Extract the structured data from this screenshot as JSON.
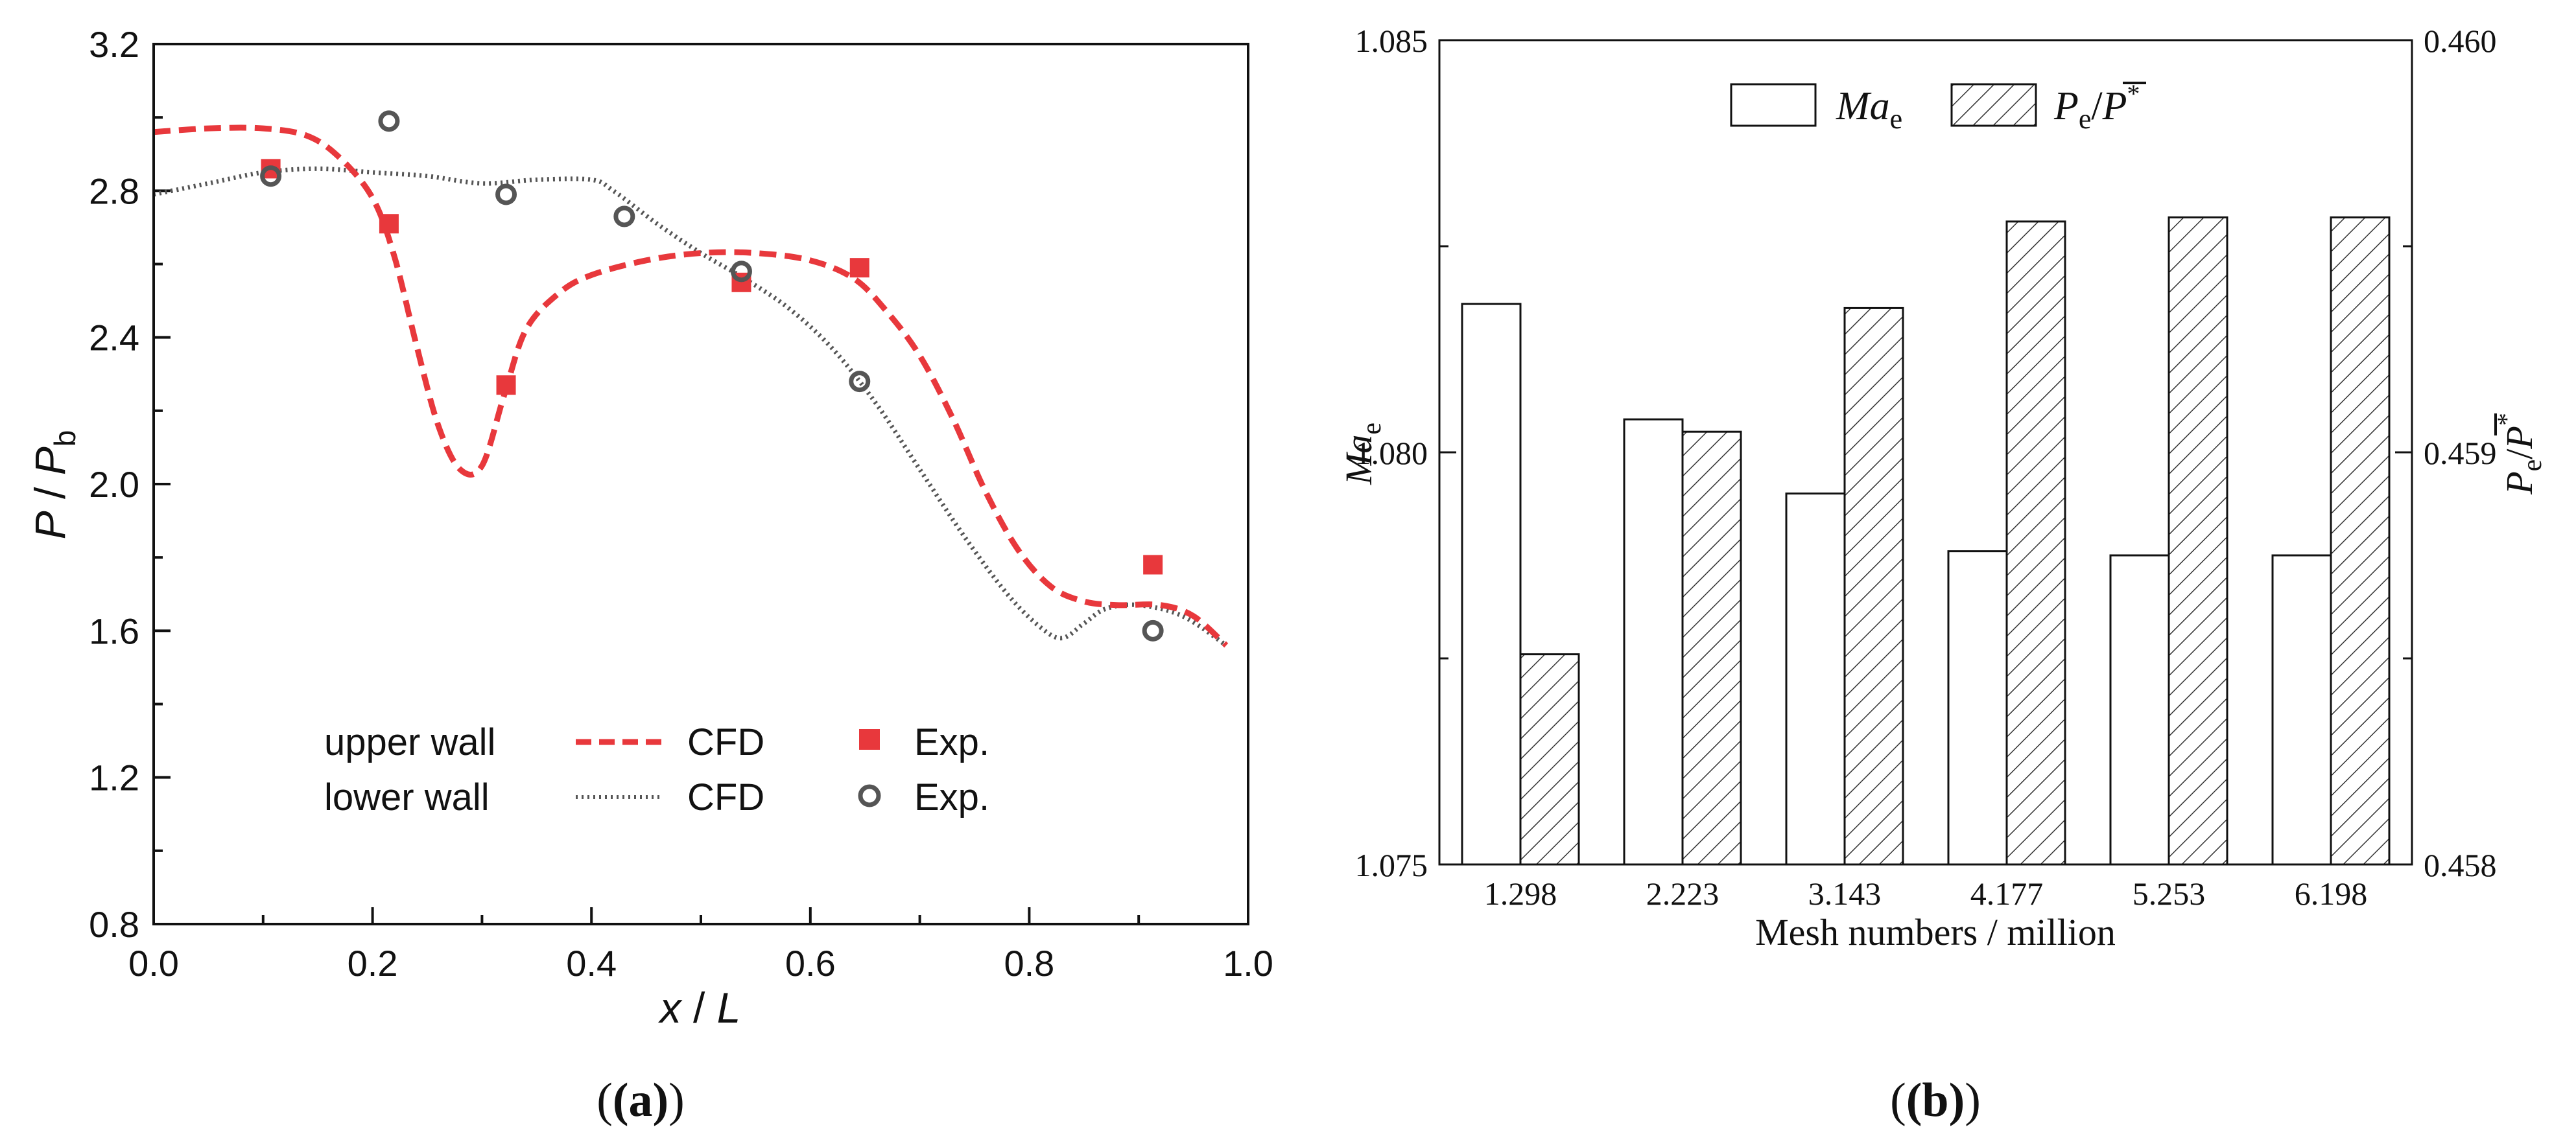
{
  "panel_labels": [
    "(a)",
    "(b)"
  ],
  "chart_data": [
    {
      "type": "line",
      "panel": "a",
      "title": "",
      "xlabel_parts": [
        "x",
        " / ",
        "L"
      ],
      "ylabel_parts": [
        "P",
        " / ",
        "P",
        "b"
      ],
      "xlim": [
        0.0,
        1.0
      ],
      "ylim": [
        0.8,
        3.2
      ],
      "xticks": [
        "0.0",
        "0.2",
        "0.4",
        "0.6",
        "0.8",
        "1.0"
      ],
      "yticks": [
        "0.8",
        "1.2",
        "1.6",
        "2.0",
        "2.4",
        "2.8",
        "3.2"
      ],
      "legend_position": "bottom-left",
      "legend": {
        "row1_label": "upper wall",
        "row2_label": "lower wall",
        "line_label": "CFD",
        "marker_label": "Exp."
      },
      "colors": {
        "upper": "#e8383c",
        "lower": "#555555",
        "lower_marker": "#555555"
      },
      "series": [
        {
          "group": "upper wall",
          "kind": "CFD line",
          "x": [
            0.0,
            0.05,
            0.1,
            0.14,
            0.17,
            0.2,
            0.22,
            0.24,
            0.26,
            0.28,
            0.3,
            0.32,
            0.34,
            0.37,
            0.4,
            0.45,
            0.5,
            0.55,
            0.6,
            0.64,
            0.67,
            0.7,
            0.73,
            0.76,
            0.79,
            0.82,
            0.85,
            0.88,
            0.92,
            0.95,
            0.98
          ],
          "y": [
            2.96,
            2.97,
            2.97,
            2.95,
            2.89,
            2.78,
            2.62,
            2.38,
            2.16,
            2.04,
            2.05,
            2.24,
            2.42,
            2.52,
            2.57,
            2.61,
            2.63,
            2.63,
            2.61,
            2.56,
            2.47,
            2.35,
            2.18,
            1.98,
            1.82,
            1.72,
            1.68,
            1.67,
            1.67,
            1.64,
            1.56
          ]
        },
        {
          "group": "lower wall",
          "kind": "CFD line",
          "x": [
            0.0,
            0.05,
            0.1,
            0.15,
            0.2,
            0.25,
            0.3,
            0.35,
            0.4,
            0.42,
            0.46,
            0.5,
            0.54,
            0.58,
            0.62,
            0.66,
            0.7,
            0.74,
            0.78,
            0.81,
            0.83,
            0.85,
            0.87,
            0.9,
            0.94,
            0.98
          ],
          "y": [
            2.79,
            2.82,
            2.85,
            2.86,
            2.85,
            2.84,
            2.82,
            2.83,
            2.83,
            2.8,
            2.71,
            2.63,
            2.56,
            2.48,
            2.37,
            2.22,
            2.04,
            1.86,
            1.7,
            1.61,
            1.58,
            1.62,
            1.66,
            1.67,
            1.64,
            1.56
          ]
        },
        {
          "group": "upper wall",
          "kind": "Exp.",
          "x": [
            0.107,
            0.215,
            0.322,
            0.537,
            0.645,
            0.913
          ],
          "y": [
            2.86,
            2.71,
            2.27,
            2.55,
            2.59,
            1.78
          ]
        },
        {
          "group": "lower wall",
          "kind": "Exp.",
          "x": [
            0.107,
            0.215,
            0.322,
            0.43,
            0.537,
            0.645,
            0.913
          ],
          "y": [
            2.84,
            2.99,
            2.79,
            2.73,
            2.58,
            2.28,
            1.6
          ]
        }
      ]
    },
    {
      "type": "bar",
      "panel": "b",
      "title": "",
      "xlabel": "Mesh numbers / million",
      "ylabel_parts": [
        "Ma",
        "e"
      ],
      "y2label_parts": [
        "P",
        "e",
        "/",
        "P",
        "*"
      ],
      "categories": [
        "1.298",
        "2.223",
        "3.143",
        "4.177",
        "5.253",
        "6.198"
      ],
      "ylim": [
        1.075,
        1.085
      ],
      "y2lim": [
        0.458,
        0.46
      ],
      "yticks": [
        "1.075",
        "1.080",
        "1.085"
      ],
      "y2ticks": [
        "0.458",
        "0.459",
        "0.460"
      ],
      "legend_position": "top-center",
      "series": [
        {
          "name_parts": [
            "Ma",
            "e"
          ],
          "axis": "left",
          "fill": "plain",
          "values": [
            1.0818,
            1.0804,
            1.0795,
            1.0788,
            1.07875,
            1.07875
          ]
        },
        {
          "name_parts": [
            "P",
            "e",
            "/",
            "P",
            "*"
          ],
          "axis": "right",
          "fill": "hatched",
          "values": [
            0.45851,
            0.45905,
            0.45935,
            0.45956,
            0.45957,
            0.45957
          ]
        }
      ]
    }
  ]
}
